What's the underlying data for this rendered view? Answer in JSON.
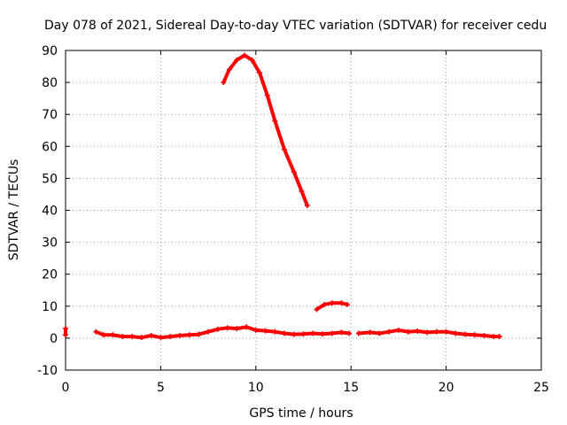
{
  "chart_data": {
    "type": "scatter",
    "title": "Day 078 of 2021, Sidereal Day-to-day VTEC variation (SDTVAR) for receiver cedu",
    "xlabel": "GPS time / hours",
    "ylabel": "SDTVAR / TECUs",
    "xlim": [
      0,
      25
    ],
    "ylim": [
      -10,
      90
    ],
    "x_ticks": [
      0,
      5,
      10,
      15,
      20,
      25
    ],
    "y_ticks": [
      -10,
      0,
      10,
      20,
      30,
      40,
      50,
      60,
      70,
      80,
      90
    ],
    "x_tick_labels": [
      "0",
      "5",
      "10",
      "15",
      "20",
      "25"
    ],
    "y_tick_labels": [
      "-10",
      "0",
      "10",
      "20",
      "30",
      "40",
      "50",
      "60",
      "70",
      "80",
      "90"
    ],
    "grid": true,
    "series": [
      {
        "name": "SDTVAR",
        "color": "#ff0000",
        "marker": "plus",
        "segments": [
          [
            [
              0.0,
              3.0
            ],
            [
              0.0,
              1.0
            ]
          ],
          [
            [
              1.6,
              2.0
            ],
            [
              2.0,
              1.0
            ],
            [
              2.5,
              1.0
            ],
            [
              3.0,
              0.5
            ],
            [
              3.5,
              0.5
            ],
            [
              4.0,
              0.2
            ],
            [
              4.5,
              0.8
            ],
            [
              5.0,
              0.2
            ],
            [
              5.5,
              0.5
            ],
            [
              6.0,
              0.8
            ],
            [
              6.5,
              1.0
            ],
            [
              7.0,
              1.2
            ],
            [
              7.5,
              2.0
            ],
            [
              8.0,
              2.8
            ],
            [
              8.5,
              3.2
            ],
            [
              9.0,
              3.0
            ],
            [
              9.5,
              3.5
            ],
            [
              10.0,
              2.5
            ],
            [
              10.5,
              2.3
            ],
            [
              11.0,
              2.0
            ],
            [
              11.5,
              1.5
            ],
            [
              12.0,
              1.2
            ],
            [
              12.5,
              1.3
            ],
            [
              13.0,
              1.5
            ],
            [
              13.5,
              1.3
            ],
            [
              14.0,
              1.5
            ],
            [
              14.5,
              1.8
            ],
            [
              14.9,
              1.5
            ]
          ],
          [
            [
              15.4,
              1.5
            ],
            [
              16.0,
              1.8
            ],
            [
              16.5,
              1.5
            ],
            [
              17.0,
              2.0
            ],
            [
              17.5,
              2.5
            ],
            [
              18.0,
              2.0
            ],
            [
              18.5,
              2.2
            ],
            [
              19.0,
              1.8
            ],
            [
              19.5,
              2.0
            ],
            [
              20.0,
              2.0
            ],
            [
              20.5,
              1.5
            ],
            [
              21.0,
              1.2
            ],
            [
              21.5,
              1.0
            ],
            [
              22.0,
              0.8
            ],
            [
              22.5,
              0.5
            ],
            [
              22.8,
              0.5
            ]
          ],
          [
            [
              8.3,
              80.0
            ],
            [
              8.6,
              84.0
            ],
            [
              9.0,
              87.0
            ],
            [
              9.4,
              88.5
            ],
            [
              9.8,
              87.0
            ],
            [
              10.2,
              83.0
            ],
            [
              10.6,
              76.0
            ],
            [
              11.0,
              68.0
            ],
            [
              11.5,
              59.0
            ],
            [
              12.0,
              52.0
            ],
            [
              12.4,
              46.0
            ],
            [
              12.7,
              41.5
            ]
          ],
          [
            [
              13.2,
              9.0
            ],
            [
              13.6,
              10.5
            ],
            [
              14.0,
              11.0
            ],
            [
              14.5,
              11.0
            ],
            [
              14.8,
              10.5
            ]
          ]
        ]
      }
    ]
  }
}
